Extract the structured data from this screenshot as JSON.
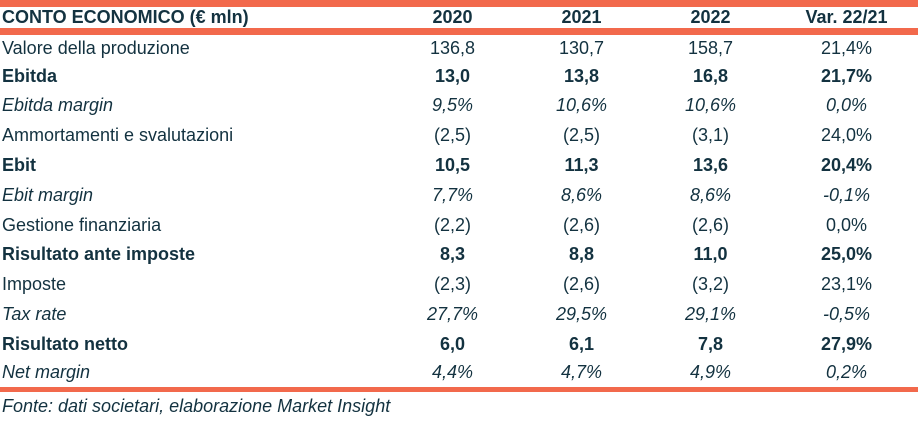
{
  "colors": {
    "accent_bar": "#f2694c",
    "text": "#133240",
    "background": "#ffffff"
  },
  "chart_data": {
    "type": "table",
    "title": "CONTO ECONOMICO (€ mln)",
    "unit": "€ mln",
    "columns": [
      "2020",
      "2021",
      "2022",
      "Var. 22/21"
    ],
    "rows": [
      {
        "label": "Valore della produzione",
        "style": "normal",
        "display": [
          "136,8",
          "130,7",
          "158,7",
          "21,4%"
        ],
        "values": [
          136.8,
          130.7,
          158.7
        ],
        "var_22_21_pct": 21.4
      },
      {
        "label": "Ebitda",
        "style": "bold",
        "display": [
          "13,0",
          "13,8",
          "16,8",
          "21,7%"
        ],
        "values": [
          13.0,
          13.8,
          16.8
        ],
        "var_22_21_pct": 21.7
      },
      {
        "label": "Ebitda margin",
        "style": "italic",
        "display": [
          "9,5%",
          "10,6%",
          "10,6%",
          "0,0%"
        ],
        "values": [
          9.5,
          10.6,
          10.6
        ],
        "var_22_21_pct": 0.0
      },
      {
        "label": "Ammortamenti e svalutazioni",
        "style": "normal",
        "display": [
          "(2,5)",
          "(2,5)",
          "(3,1)",
          "24,0%"
        ],
        "values": [
          -2.5,
          -2.5,
          -3.1
        ],
        "var_22_21_pct": 24.0
      },
      {
        "label": "Ebit",
        "style": "bold",
        "display": [
          "10,5",
          "11,3",
          "13,6",
          "20,4%"
        ],
        "values": [
          10.5,
          11.3,
          13.6
        ],
        "var_22_21_pct": 20.4
      },
      {
        "label": "Ebit margin",
        "style": "italic",
        "display": [
          "7,7%",
          "8,6%",
          "8,6%",
          "-0,1%"
        ],
        "values": [
          7.7,
          8.6,
          8.6
        ],
        "var_22_21_pct": -0.1
      },
      {
        "label": "Gestione finanziaria",
        "style": "normal",
        "display": [
          "(2,2)",
          "(2,6)",
          "(2,6)",
          "0,0%"
        ],
        "values": [
          -2.2,
          -2.6,
          -2.6
        ],
        "var_22_21_pct": 0.0
      },
      {
        "label": "Risultato ante imposte",
        "style": "bold",
        "display": [
          "8,3",
          "8,8",
          "11,0",
          "25,0%"
        ],
        "values": [
          8.3,
          8.8,
          11.0
        ],
        "var_22_21_pct": 25.0
      },
      {
        "label": "Imposte",
        "style": "normal",
        "display": [
          "(2,3)",
          "(2,6)",
          "(3,2)",
          "23,1%"
        ],
        "values": [
          -2.3,
          -2.6,
          -3.2
        ],
        "var_22_21_pct": 23.1
      },
      {
        "label": "Tax rate",
        "style": "italic",
        "display": [
          "27,7%",
          "29,5%",
          "29,1%",
          "-0,5%"
        ],
        "values": [
          27.7,
          29.5,
          29.1
        ],
        "var_22_21_pct": -0.5
      },
      {
        "label": "Risultato netto",
        "style": "bold",
        "display": [
          "6,0",
          "6,1",
          "7,8",
          "27,9%"
        ],
        "values": [
          6.0,
          6.1,
          7.8
        ],
        "var_22_21_pct": 27.9
      },
      {
        "label": "Net margin",
        "style": "italic",
        "display": [
          "4,4%",
          "4,7%",
          "4,9%",
          "0,2%"
        ],
        "values": [
          4.4,
          4.7,
          4.9
        ],
        "var_22_21_pct": 0.2
      }
    ],
    "source_note": "Fonte: dati societari, elaborazione Market Insight",
    "layout": {
      "grid": false,
      "value_alignment": "center",
      "negative_format": "parentheses"
    }
  }
}
